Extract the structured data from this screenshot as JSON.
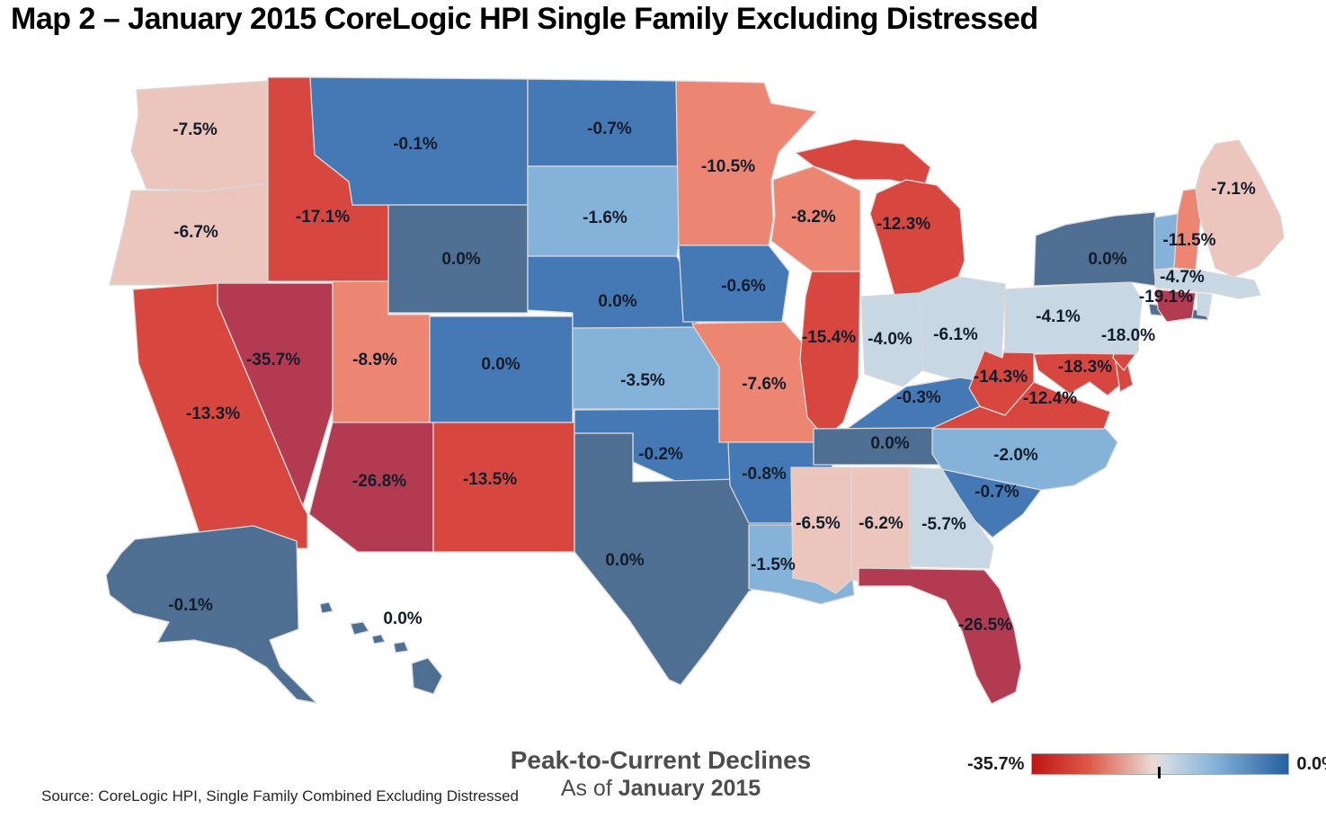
{
  "title": "Map 2 – January 2015 CoreLogic HPI Single Family Excluding Distressed",
  "chart_data": {
    "type": "choropleth",
    "title": "Map 2 – January 2015 CoreLogic HPI Single Family Excluding Distressed",
    "metric": "Peak-to-Current Declines",
    "as_of": "January 2015",
    "unit": "percent",
    "value_range": [
      -35.7,
      0.0
    ],
    "color_scale": {
      "min_color": "#c01414",
      "mid_color": "#e9d9d3",
      "max_color": "#265f9f"
    },
    "states": [
      {
        "id": "WA",
        "name": "Washington",
        "label": "-7.5%",
        "value": -7.5,
        "color": "#ecc5bc"
      },
      {
        "id": "OR",
        "name": "Oregon",
        "label": "-6.7%",
        "value": -6.7,
        "color": "#ecc5bc"
      },
      {
        "id": "CA",
        "name": "California",
        "label": "-13.3%",
        "value": -13.3,
        "color": "#d8473f"
      },
      {
        "id": "ID",
        "name": "Idaho",
        "label": "-17.1%",
        "value": -17.1,
        "color": "#d8473f"
      },
      {
        "id": "NV",
        "name": "Nevada",
        "label": "-35.7%",
        "value": -35.7,
        "color": "#b23b52"
      },
      {
        "id": "UT",
        "name": "Utah",
        "label": "-8.9%",
        "value": -8.9,
        "color": "#ec8672"
      },
      {
        "id": "AZ",
        "name": "Arizona",
        "label": "-26.8%",
        "value": -26.8,
        "color": "#b23b52"
      },
      {
        "id": "MT",
        "name": "Montana",
        "label": "-0.1%",
        "value": -0.1,
        "color": "#4479b6"
      },
      {
        "id": "WY",
        "name": "Wyoming",
        "label": "0.0%",
        "value": 0.0,
        "color": "#4e6e92"
      },
      {
        "id": "CO",
        "name": "Colorado",
        "label": "0.0%",
        "value": 0.0,
        "color": "#4479b6"
      },
      {
        "id": "NM",
        "name": "New Mexico",
        "label": "-13.5%",
        "value": -13.5,
        "color": "#d8473f"
      },
      {
        "id": "ND",
        "name": "North Dakota",
        "label": "-0.7%",
        "value": -0.7,
        "color": "#4479b6"
      },
      {
        "id": "SD",
        "name": "South Dakota",
        "label": "-1.6%",
        "value": -1.6,
        "color": "#85b2d9"
      },
      {
        "id": "NE",
        "name": "Nebraska",
        "label": "0.0%",
        "value": 0.0,
        "color": "#4479b6"
      },
      {
        "id": "KS",
        "name": "Kansas",
        "label": "-3.5%",
        "value": -3.5,
        "color": "#85b2d9"
      },
      {
        "id": "OK",
        "name": "Oklahoma",
        "label": "-0.2%",
        "value": -0.2,
        "color": "#4479b6"
      },
      {
        "id": "TX",
        "name": "Texas",
        "label": "0.0%",
        "value": 0.0,
        "color": "#4e6e92"
      },
      {
        "id": "MN",
        "name": "Minnesota",
        "label": "-10.5%",
        "value": -10.5,
        "color": "#ec8672"
      },
      {
        "id": "IA",
        "name": "Iowa",
        "label": "-0.6%",
        "value": -0.6,
        "color": "#4479b6"
      },
      {
        "id": "MO",
        "name": "Missouri",
        "label": "-7.6%",
        "value": -7.6,
        "color": "#ec8672"
      },
      {
        "id": "AR",
        "name": "Arkansas",
        "label": "-0.8%",
        "value": -0.8,
        "color": "#4479b6"
      },
      {
        "id": "LA",
        "name": "Louisiana",
        "label": "-1.5%",
        "value": -1.5,
        "color": "#85b2d9"
      },
      {
        "id": "WI",
        "name": "Wisconsin",
        "label": "-8.2%",
        "value": -8.2,
        "color": "#ec8672"
      },
      {
        "id": "IL",
        "name": "Illinois",
        "label": "-15.4%",
        "value": -15.4,
        "color": "#d8473f"
      },
      {
        "id": "MI",
        "name": "Michigan",
        "label": "-12.3%",
        "value": -12.3,
        "color": "#d8473f"
      },
      {
        "id": "IN",
        "name": "Indiana",
        "label": "-4.0%",
        "value": -4.0,
        "color": "#c7d7e3"
      },
      {
        "id": "OH",
        "name": "Ohio",
        "label": "-6.1%",
        "value": -6.1,
        "color": "#c7d7e3"
      },
      {
        "id": "KY",
        "name": "Kentucky",
        "label": "-0.3%",
        "value": -0.3,
        "color": "#4479b6"
      },
      {
        "id": "TN",
        "name": "Tennessee",
        "label": "0.0%",
        "value": 0.0,
        "color": "#4e6e92"
      },
      {
        "id": "MS",
        "name": "Mississippi",
        "label": "-6.5%",
        "value": -6.5,
        "color": "#ecc5bc"
      },
      {
        "id": "AL",
        "name": "Alabama",
        "label": "-6.2%",
        "value": -6.2,
        "color": "#ecc5bc"
      },
      {
        "id": "GA",
        "name": "Georgia",
        "label": "-5.7%",
        "value": -5.7,
        "color": "#c7d7e3"
      },
      {
        "id": "FL",
        "name": "Florida",
        "label": "-26.5%",
        "value": -26.5,
        "color": "#b23b52"
      },
      {
        "id": "SC",
        "name": "South Carolina",
        "label": "-0.7%",
        "value": -0.7,
        "color": "#4479b6"
      },
      {
        "id": "NC",
        "name": "North Carolina",
        "label": "-2.0%",
        "value": -2.0,
        "color": "#85b2d9"
      },
      {
        "id": "VA",
        "name": "Virginia",
        "label": "-12.4%",
        "value": -12.4,
        "color": "#d8473f"
      },
      {
        "id": "WV",
        "name": "West Virginia",
        "label": "-14.3%",
        "value": -14.3,
        "color": "#d8473f"
      },
      {
        "id": "MD",
        "name": "Maryland",
        "label": "-18.3%",
        "value": -18.3,
        "color": "#d8473f"
      },
      {
        "id": "DE",
        "name": "Delaware",
        "label": "",
        "value": null,
        "color": "#d8473f"
      },
      {
        "id": "NJ",
        "name": "New Jersey",
        "label": "-18.0%",
        "value": -18.0,
        "color": "#d8473f"
      },
      {
        "id": "PA",
        "name": "Pennsylvania",
        "label": "-4.1%",
        "value": -4.1,
        "color": "#c7d7e3"
      },
      {
        "id": "NY",
        "name": "New York",
        "label": "0.0%",
        "value": 0.0,
        "color": "#4e6e92"
      },
      {
        "id": "VT",
        "name": "Vermont",
        "label": "",
        "value": null,
        "color": "#85b2d9"
      },
      {
        "id": "NH",
        "name": "New Hampshire",
        "label": "-11.5%",
        "value": -11.5,
        "color": "#ec8672"
      },
      {
        "id": "ME",
        "name": "Maine",
        "label": "-7.1%",
        "value": -7.1,
        "color": "#ecc5bc"
      },
      {
        "id": "MA",
        "name": "Massachusetts",
        "label": "-4.7%",
        "value": -4.7,
        "color": "#c7d7e3"
      },
      {
        "id": "RI",
        "name": "Rhode Island",
        "label": "",
        "value": null,
        "color": "#c7d7e3"
      },
      {
        "id": "CT",
        "name": "Connecticut",
        "label": "-19.1%",
        "value": -19.1,
        "color": "#b23b52"
      },
      {
        "id": "AK",
        "name": "Alaska",
        "label": "-0.1%",
        "value": -0.1,
        "color": "#4e6e92"
      },
      {
        "id": "HI",
        "name": "Hawaii",
        "label": "0.0%",
        "value": 0.0,
        "color": "#4e6e92"
      }
    ]
  },
  "legend": {
    "min_label": "-35.7%",
    "max_label": "0.0%",
    "gradient_stops": [
      "#c01414 0%",
      "#dc5847 22%",
      "#e9d9d3 47%",
      "#ccd9e4 53%",
      "#82b0d8 72%",
      "#265f9f 100%"
    ]
  },
  "caption": {
    "line1": "Peak-to-Current Declines",
    "line2_prefix": "As of ",
    "line2_bold": "January 2015"
  },
  "source": "Source: CoreLogic HPI, Single Family Combined Excluding Distressed"
}
